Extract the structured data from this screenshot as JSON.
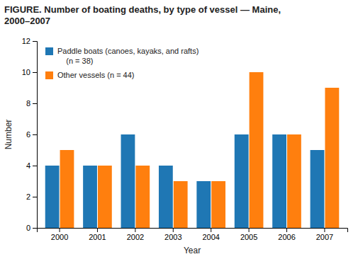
{
  "chart_data": {
    "type": "bar",
    "title": "FIGURE. Number of boating deaths, by type of vessel — Maine,\n2000–2007",
    "x_label": "Year",
    "y_label": "Number",
    "categories": [
      "2000",
      "2001",
      "2002",
      "2003",
      "2004",
      "2005",
      "2006",
      "2007"
    ],
    "series": [
      {
        "name": "Paddle boats (canoes, kayaks, and rafts)\n    (n = 38)",
        "values": [
          4,
          4,
          6,
          4,
          3,
          6,
          6,
          5
        ]
      },
      {
        "name": "Other vessels (n = 44)",
        "values": [
          5,
          4,
          4,
          3,
          3,
          10,
          6,
          9
        ]
      }
    ],
    "ylim": [
      0,
      12
    ],
    "yticks": [
      0,
      2,
      4,
      6,
      8,
      10,
      12
    ],
    "grid": false,
    "legend": "upper left"
  }
}
